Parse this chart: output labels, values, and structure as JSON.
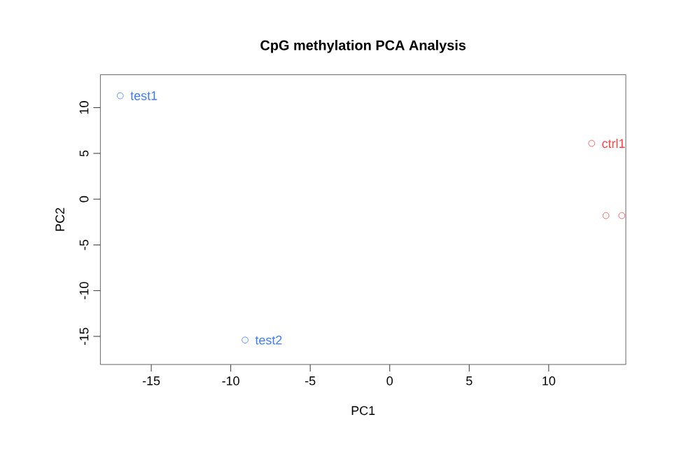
{
  "chart_data": {
    "type": "scatter",
    "title": "CpG methylation PCA Analysis",
    "xlabel": "PC1",
    "ylabel": "PC2",
    "marker": "circle",
    "grid": false,
    "series": [
      {
        "color": "#3b7bff",
        "x": [
          -16.95,
          -9.1
        ],
        "values": [
          11.3,
          -15.4
        ]
      },
      {
        "color": "#ff4040",
        "x": [
          12.7,
          13.6,
          14.6
        ],
        "values": [
          6.1,
          -1.8,
          -1.8
        ]
      }
    ],
    "annotations": [
      {
        "text": "test1",
        "x": -16.95,
        "y": 11.3
      },
      {
        "text": "test2",
        "x": -9.1,
        "y": -15.4
      },
      {
        "text": "ctrl1",
        "x": 12.7,
        "y": 6.1
      }
    ],
    "xlim": [
      -18.2,
      14.85
    ],
    "ylim": [
      -18.07,
      13.6
    ],
    "xticks": [
      -15,
      -10,
      -5,
      0,
      5,
      10
    ],
    "yticks": [
      -15,
      -10,
      -5,
      0,
      5,
      10
    ]
  }
}
